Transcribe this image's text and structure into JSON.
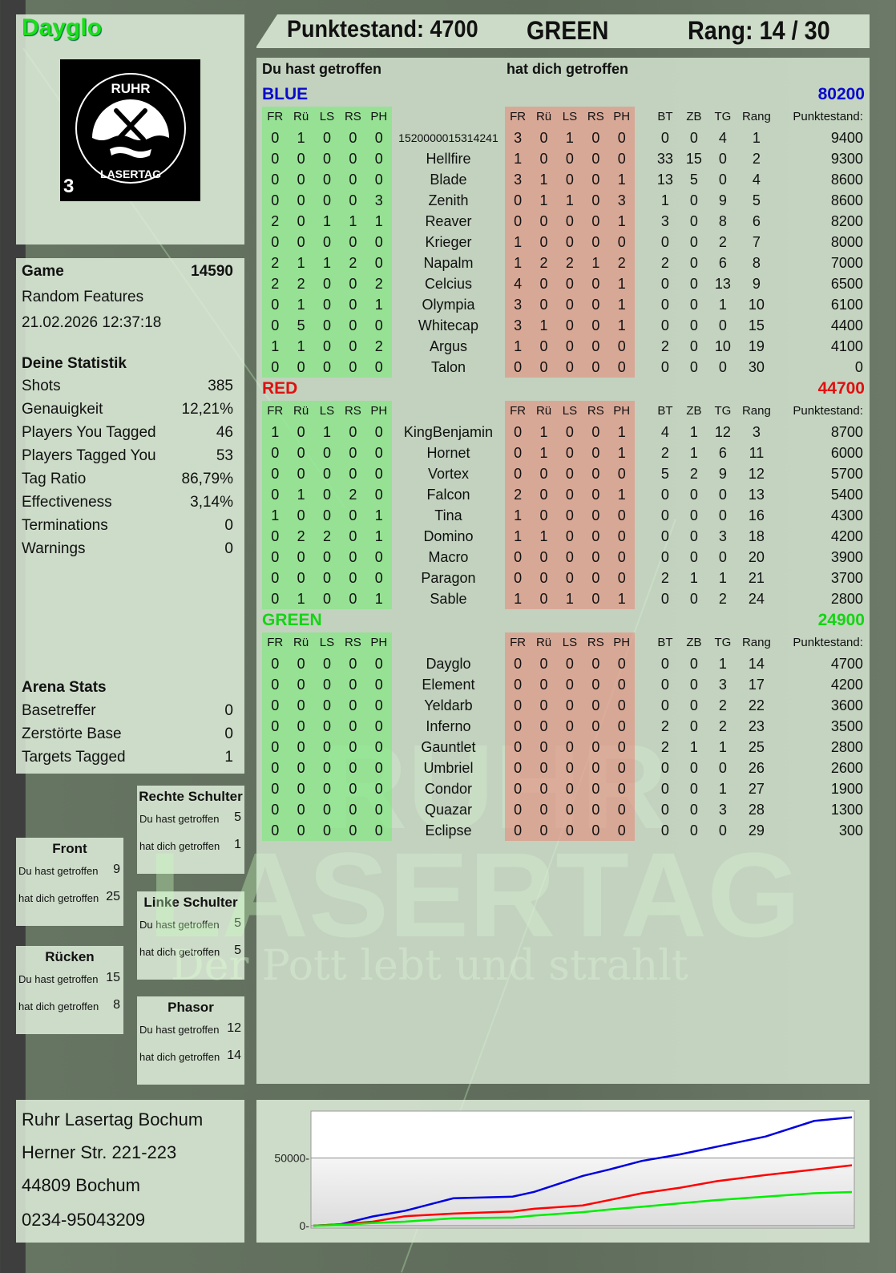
{
  "player": {
    "name": "Dayglo",
    "logo_text": "RUHR LASERTAG",
    "logo_badge": "3"
  },
  "header": {
    "score_label": "Punktestand: 4700",
    "team": "GREEN",
    "rank_label": "Rang: 14 / 30"
  },
  "game": {
    "label": "Game",
    "id": "14590",
    "mode": "Random Features",
    "datetime": "21.02.2026 12:37:18"
  },
  "stats": {
    "title": "Deine Statistik",
    "items": [
      {
        "label": "Shots",
        "value": "385"
      },
      {
        "label": "Genauigkeit",
        "value": "12,21%"
      },
      {
        "label": "Players You Tagged",
        "value": "46"
      },
      {
        "label": "Players Tagged You",
        "value": "53"
      },
      {
        "label": "Tag Ratio",
        "value": "86,79%"
      },
      {
        "label": "Effectiveness",
        "value": "3,14%"
      },
      {
        "label": "Terminations",
        "value": "0"
      },
      {
        "label": "Warnings",
        "value": "0"
      }
    ]
  },
  "arena": {
    "title": "Arena Stats",
    "items": [
      {
        "label": "Basetreffer",
        "value": "0"
      },
      {
        "label": "Zerstörte Base",
        "value": "0"
      },
      {
        "label": "Targets Tagged",
        "value": "1"
      }
    ]
  },
  "bodyparts": [
    {
      "title": "Rechte Schulter",
      "hit_label": "Du hast getroffen",
      "hit": "5",
      "got_label": "hat dich getroffen",
      "got": "1"
    },
    {
      "title": "Front",
      "hit_label": "Du hast getroffen",
      "hit": "9",
      "got_label": "hat dich getroffen",
      "got": "25"
    },
    {
      "title": "Linke Schulter",
      "hit_label": "Du hast getroffen",
      "hit": "5",
      "got_label": "hat dich getroffen",
      "got": "5"
    },
    {
      "title": "Rücken",
      "hit_label": "Du hast getroffen",
      "hit": "15",
      "got_label": "hat dich getroffen",
      "got": "8"
    },
    {
      "title": "Phasor",
      "hit_label": "Du hast getroffen",
      "hit": "12",
      "got_label": "hat dich getroffen",
      "got": "14"
    }
  ],
  "table": {
    "you_hit_label": "Du hast getroffen",
    "hit_you_label": "hat dich getroffen",
    "headers": [
      "FR",
      "Rü",
      "LS",
      "RS",
      "PH",
      "",
      "FR",
      "Rü",
      "LS",
      "RS",
      "PH",
      "BT",
      "ZB",
      "TG",
      "Rang",
      "Punktestand:"
    ],
    "teams": [
      {
        "name": "BLUE",
        "score": "80200",
        "color": "#0a0acc",
        "rows": [
          [
            "1520000015314241",
            0,
            1,
            0,
            0,
            0,
            3,
            0,
            1,
            0,
            0,
            0,
            0,
            4,
            1,
            9400
          ],
          [
            "Hellfire",
            0,
            0,
            0,
            0,
            0,
            1,
            0,
            0,
            0,
            0,
            33,
            15,
            0,
            2,
            9300
          ],
          [
            "Blade",
            0,
            0,
            0,
            0,
            0,
            3,
            1,
            0,
            0,
            1,
            13,
            5,
            0,
            4,
            8600
          ],
          [
            "Zenith",
            0,
            0,
            0,
            0,
            3,
            0,
            1,
            1,
            0,
            3,
            1,
            0,
            9,
            5,
            8600
          ],
          [
            "Reaver",
            2,
            0,
            1,
            1,
            1,
            0,
            0,
            0,
            0,
            1,
            3,
            0,
            8,
            6,
            8200
          ],
          [
            "Krieger",
            0,
            0,
            0,
            0,
            0,
            1,
            0,
            0,
            0,
            0,
            0,
            0,
            2,
            7,
            8000
          ],
          [
            "Napalm",
            2,
            1,
            1,
            2,
            0,
            1,
            2,
            2,
            1,
            2,
            2,
            0,
            6,
            8,
            7000
          ],
          [
            "Celcius",
            2,
            2,
            0,
            0,
            2,
            4,
            0,
            0,
            0,
            1,
            0,
            0,
            13,
            9,
            6500
          ],
          [
            "Olympia",
            0,
            1,
            0,
            0,
            1,
            3,
            0,
            0,
            0,
            1,
            0,
            0,
            1,
            10,
            6100
          ],
          [
            "Whitecap",
            0,
            5,
            0,
            0,
            0,
            3,
            1,
            0,
            0,
            1,
            0,
            0,
            0,
            15,
            4400
          ],
          [
            "Argus",
            1,
            1,
            0,
            0,
            2,
            1,
            0,
            0,
            0,
            0,
            2,
            0,
            10,
            19,
            4100
          ],
          [
            "Talon",
            0,
            0,
            0,
            0,
            0,
            0,
            0,
            0,
            0,
            0,
            0,
            0,
            0,
            30,
            0
          ]
        ]
      },
      {
        "name": "RED",
        "score": "44700",
        "color": "#e01010",
        "rows": [
          [
            "KingBenjamin",
            1,
            0,
            1,
            0,
            0,
            0,
            1,
            0,
            0,
            1,
            4,
            1,
            12,
            3,
            8700
          ],
          [
            "Hornet",
            0,
            0,
            0,
            0,
            0,
            0,
            1,
            0,
            0,
            1,
            2,
            1,
            6,
            11,
            6000
          ],
          [
            "Vortex",
            0,
            0,
            0,
            0,
            0,
            0,
            0,
            0,
            0,
            0,
            5,
            2,
            9,
            12,
            5700
          ],
          [
            "Falcon",
            0,
            1,
            0,
            2,
            0,
            2,
            0,
            0,
            0,
            1,
            0,
            0,
            0,
            13,
            5400
          ],
          [
            "Tina",
            1,
            0,
            0,
            0,
            1,
            1,
            0,
            0,
            0,
            0,
            0,
            0,
            0,
            16,
            4300
          ],
          [
            "Domino",
            0,
            2,
            2,
            0,
            1,
            1,
            1,
            0,
            0,
            0,
            0,
            0,
            3,
            18,
            4200
          ],
          [
            "Macro",
            0,
            0,
            0,
            0,
            0,
            0,
            0,
            0,
            0,
            0,
            0,
            0,
            0,
            20,
            3900
          ],
          [
            "Paragon",
            0,
            0,
            0,
            0,
            0,
            0,
            0,
            0,
            0,
            0,
            2,
            1,
            1,
            21,
            3700
          ],
          [
            "Sable",
            0,
            1,
            0,
            0,
            1,
            1,
            0,
            1,
            0,
            1,
            0,
            0,
            2,
            24,
            2800
          ]
        ]
      },
      {
        "name": "GREEN",
        "score": "24900",
        "color": "#14d414",
        "rows": [
          [
            "Dayglo",
            0,
            0,
            0,
            0,
            0,
            0,
            0,
            0,
            0,
            0,
            0,
            0,
            1,
            14,
            4700
          ],
          [
            "Element",
            0,
            0,
            0,
            0,
            0,
            0,
            0,
            0,
            0,
            0,
            0,
            0,
            3,
            17,
            4200
          ],
          [
            "Yeldarb",
            0,
            0,
            0,
            0,
            0,
            0,
            0,
            0,
            0,
            0,
            0,
            0,
            2,
            22,
            3600
          ],
          [
            "Inferno",
            0,
            0,
            0,
            0,
            0,
            0,
            0,
            0,
            0,
            0,
            2,
            0,
            2,
            23,
            3500
          ],
          [
            "Gauntlet",
            0,
            0,
            0,
            0,
            0,
            0,
            0,
            0,
            0,
            0,
            2,
            1,
            1,
            25,
            2800
          ],
          [
            "Umbriel",
            0,
            0,
            0,
            0,
            0,
            0,
            0,
            0,
            0,
            0,
            0,
            0,
            0,
            26,
            2600
          ],
          [
            "Condor",
            0,
            0,
            0,
            0,
            0,
            0,
            0,
            0,
            0,
            0,
            0,
            0,
            1,
            27,
            1900
          ],
          [
            "Quazar",
            0,
            0,
            0,
            0,
            0,
            0,
            0,
            0,
            0,
            0,
            0,
            0,
            3,
            28,
            1300
          ],
          [
            "Eclipse",
            0,
            0,
            0,
            0,
            0,
            0,
            0,
            0,
            0,
            0,
            0,
            0,
            0,
            29,
            300
          ]
        ]
      }
    ]
  },
  "watermark": {
    "line1": "RUHR",
    "line2": "LASERTAG",
    "line3": "Der Pott lebt und strahlt"
  },
  "address": [
    "Ruhr Lasertag Bochum",
    "Herner Str. 221-223",
    "44809 Bochum",
    "0234-95043209"
  ],
  "chart_data": {
    "type": "line",
    "title": "",
    "xlabel": "",
    "ylabel": "",
    "ylim": [
      0,
      83000
    ],
    "yticks": [
      0,
      50000
    ],
    "ytick_labels": [
      "0-",
      "50000-"
    ],
    "grid": "horizontal at 50000",
    "legend": "none",
    "x": [
      0,
      5,
      11,
      17,
      26,
      37,
      41,
      50,
      55,
      61,
      68,
      75,
      84,
      93,
      100
    ],
    "series": [
      {
        "color": "#0000e0",
        "values": [
          0,
          1000,
          6800,
          11000,
          20300,
          21500,
          25000,
          36800,
          41600,
          47900,
          52700,
          58500,
          66000,
          77500,
          80200
        ]
      },
      {
        "color": "#ff0000",
        "values": [
          0,
          1000,
          3000,
          7000,
          9000,
          10500,
          12500,
          15000,
          19000,
          24000,
          28000,
          33000,
          37500,
          41500,
          44700
        ]
      },
      {
        "color": "#00ee00",
        "values": [
          0,
          500,
          2000,
          3000,
          5500,
          6000,
          7500,
          10000,
          12000,
          14000,
          16500,
          19000,
          21500,
          24000,
          24900
        ]
      }
    ]
  }
}
